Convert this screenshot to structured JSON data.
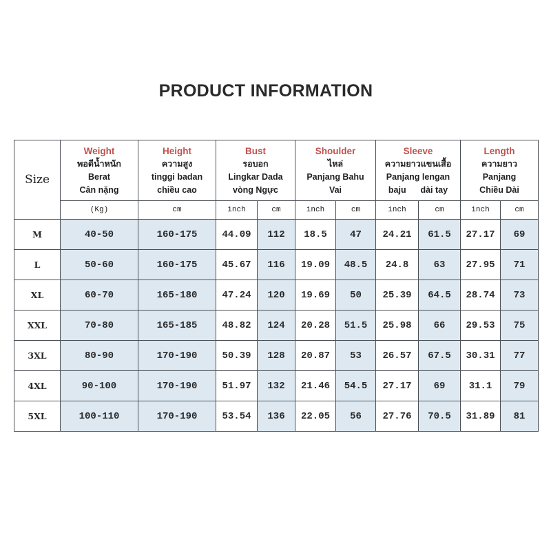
{
  "title": "PRODUCT INFORMATION",
  "colors": {
    "header_accent": "#c0504d",
    "shaded_cell": "#dde8f1",
    "border": "#4a4f55"
  },
  "size_label": "Size",
  "headers": [
    {
      "en": "Weight",
      "lines": [
        "พอดีน้ำหนัก",
        "Berat",
        "Cân nặng"
      ]
    },
    {
      "en": "Height",
      "lines": [
        "ความสูง",
        "tinggi badan",
        "chiều cao"
      ]
    },
    {
      "en": "Bust",
      "lines": [
        "รอบอก",
        "Lingkar Dada",
        "vòng Ngực"
      ]
    },
    {
      "en": "Shoulder",
      "lines": [
        "ไหล่",
        "Panjang Bahu",
        "Vai"
      ]
    },
    {
      "en": "Sleeve",
      "lines": [
        "ความยาวแขนเสื้อ",
        "Panjang lengan",
        "baju      dài tay"
      ]
    },
    {
      "en": "Length",
      "lines": [
        "ความยาว",
        "Panjang",
        "Chiều Dài"
      ]
    }
  ],
  "units": [
    "(Kg)",
    "cm",
    "inch",
    "cm",
    "inch",
    "cm",
    "inch",
    "cm",
    "inch",
    "cm"
  ],
  "rows": [
    [
      "M",
      "40-50",
      "160-175",
      "44.09",
      "112",
      "18.5",
      "47",
      "24.21",
      "61.5",
      "27.17",
      "69"
    ],
    [
      "L",
      "50-60",
      "160-175",
      "45.67",
      "116",
      "19.09",
      "48.5",
      "24.8",
      "63",
      "27.95",
      "71"
    ],
    [
      "XL",
      "60-70",
      "165-180",
      "47.24",
      "120",
      "19.69",
      "50",
      "25.39",
      "64.5",
      "28.74",
      "73"
    ],
    [
      "XXL",
      "70-80",
      "165-185",
      "48.82",
      "124",
      "20.28",
      "51.5",
      "25.98",
      "66",
      "29.53",
      "75"
    ],
    [
      "3XL",
      "80-90",
      "170-190",
      "50.39",
      "128",
      "20.87",
      "53",
      "26.57",
      "67.5",
      "30.31",
      "77"
    ],
    [
      "4XL",
      "90-100",
      "170-190",
      "51.97",
      "132",
      "21.46",
      "54.5",
      "27.17",
      "69",
      "31.1",
      "79"
    ],
    [
      "5XL",
      "100-110",
      "170-190",
      "53.54",
      "136",
      "22.05",
      "56",
      "27.76",
      "70.5",
      "31.89",
      "81"
    ]
  ]
}
